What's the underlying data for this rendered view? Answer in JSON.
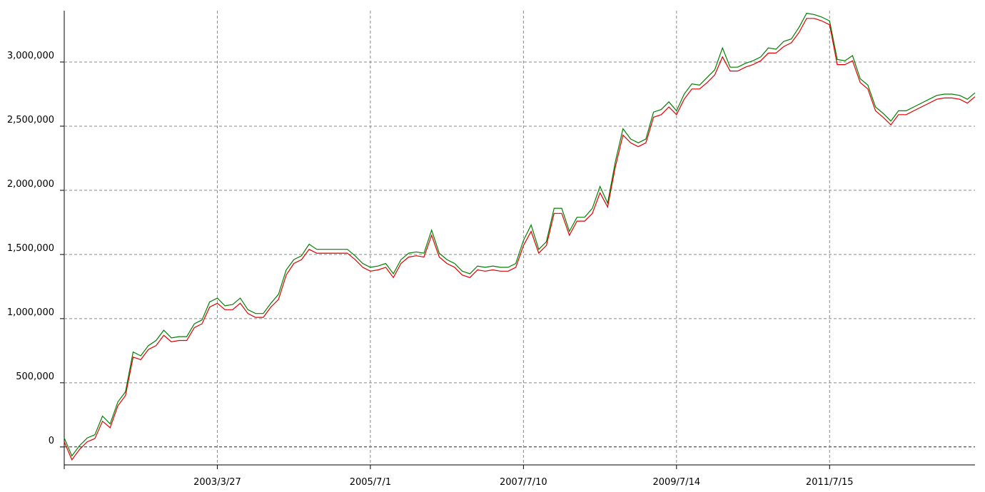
{
  "chart_data": {
    "type": "line",
    "categories": [
      null,
      null,
      null,
      null,
      null,
      null,
      null,
      null,
      null,
      null,
      null,
      null,
      null,
      null,
      null,
      null,
      null,
      null,
      null,
      null,
      "2003/3/27",
      null,
      null,
      null,
      null,
      null,
      null,
      null,
      null,
      null,
      null,
      null,
      null,
      null,
      null,
      null,
      null,
      null,
      null,
      null,
      "2005/7/1",
      null,
      null,
      null,
      null,
      null,
      null,
      null,
      null,
      null,
      null,
      null,
      null,
      null,
      null,
      null,
      null,
      null,
      null,
      null,
      "2007/7/10",
      null,
      null,
      null,
      null,
      null,
      null,
      null,
      null,
      null,
      null,
      null,
      null,
      null,
      null,
      null,
      null,
      null,
      null,
      null,
      "2009/7/14",
      null,
      null,
      null,
      null,
      null,
      null,
      null,
      null,
      null,
      null,
      null,
      null,
      null,
      null,
      null,
      null,
      null,
      null,
      null,
      "2011/7/15",
      null,
      null,
      null,
      null,
      null,
      null,
      null,
      null,
      null,
      null,
      null,
      null,
      null,
      null,
      null,
      null,
      null,
      null,
      null
    ],
    "series": [
      {
        "color": "#008000",
        "values": [
          70000,
          -70000,
          10000,
          70000,
          95000,
          240000,
          180000,
          350000,
          430000,
          740000,
          710000,
          790000,
          830000,
          910000,
          850000,
          860000,
          860000,
          960000,
          990000,
          1130000,
          1160000,
          1100000,
          1110000,
          1160000,
          1070000,
          1040000,
          1040000,
          1120000,
          1190000,
          1380000,
          1460000,
          1490000,
          1580000,
          1540000,
          1540000,
          1540000,
          1540000,
          1540000,
          1490000,
          1430000,
          1400000,
          1410000,
          1430000,
          1350000,
          1460000,
          1510000,
          1520000,
          1510000,
          1690000,
          1510000,
          1460000,
          1430000,
          1370000,
          1350000,
          1410000,
          1400000,
          1410000,
          1400000,
          1400000,
          1430000,
          1610000,
          1730000,
          1540000,
          1600000,
          1860000,
          1860000,
          1680000,
          1790000,
          1790000,
          1860000,
          2030000,
          1900000,
          2220000,
          2480000,
          2400000,
          2370000,
          2400000,
          2610000,
          2630000,
          2690000,
          2620000,
          2750000,
          2830000,
          2820000,
          2880000,
          2940000,
          3110000,
          2960000,
          2960000,
          2990000,
          3010000,
          3040000,
          3110000,
          3100000,
          3160000,
          3180000,
          3270000,
          3380000,
          3370000,
          3350000,
          3320000,
          3020000,
          3010000,
          3050000,
          2870000,
          2820000,
          2650000,
          2600000,
          2540000,
          2620000,
          2620000,
          2650000,
          2680000,
          2710000,
          2740000,
          2750000,
          2750000,
          2740000,
          2710000,
          2760000
        ]
      },
      {
        "color": "#e00000",
        "values": [
          40000,
          -100000,
          -20000,
          40000,
          65000,
          200000,
          150000,
          320000,
          400000,
          700000,
          680000,
          760000,
          790000,
          870000,
          820000,
          830000,
          830000,
          930000,
          960000,
          1090000,
          1120000,
          1070000,
          1070000,
          1120000,
          1040000,
          1010000,
          1010000,
          1090000,
          1150000,
          1340000,
          1430000,
          1460000,
          1540000,
          1510000,
          1510000,
          1510000,
          1510000,
          1510000,
          1460000,
          1400000,
          1370000,
          1380000,
          1400000,
          1320000,
          1430000,
          1480000,
          1490000,
          1480000,
          1650000,
          1480000,
          1430000,
          1400000,
          1340000,
          1320000,
          1380000,
          1370000,
          1380000,
          1370000,
          1370000,
          1400000,
          1570000,
          1680000,
          1510000,
          1570000,
          1820000,
          1820000,
          1650000,
          1760000,
          1760000,
          1820000,
          1980000,
          1870000,
          2180000,
          2430000,
          2370000,
          2340000,
          2370000,
          2570000,
          2590000,
          2650000,
          2590000,
          2710000,
          2790000,
          2790000,
          2840000,
          2900000,
          3040000,
          2930000,
          2930000,
          2960000,
          2980000,
          3010000,
          3070000,
          3070000,
          3120000,
          3150000,
          3230000,
          3340000,
          3340000,
          3320000,
          3290000,
          2980000,
          2980000,
          3010000,
          2840000,
          2790000,
          2620000,
          2570000,
          2510000,
          2590000,
          2590000,
          2620000,
          2650000,
          2680000,
          2710000,
          2720000,
          2720000,
          2710000,
          2680000,
          2730000
        ]
      }
    ],
    "ylim": [
      -140000,
      3400000
    ],
    "yticks": [
      0,
      {
        "value": 500000,
        "label": "500,000"
      },
      {
        "value": 1000000,
        "label": "1,000,000"
      },
      {
        "value": 1500000,
        "label": "1,500,000"
      },
      {
        "value": 2000000,
        "label": "2,000,000"
      },
      {
        "value": 2500000,
        "label": "2,500,000"
      },
      {
        "value": 3000000,
        "label": "3,000,000"
      }
    ],
    "grid": true
  }
}
